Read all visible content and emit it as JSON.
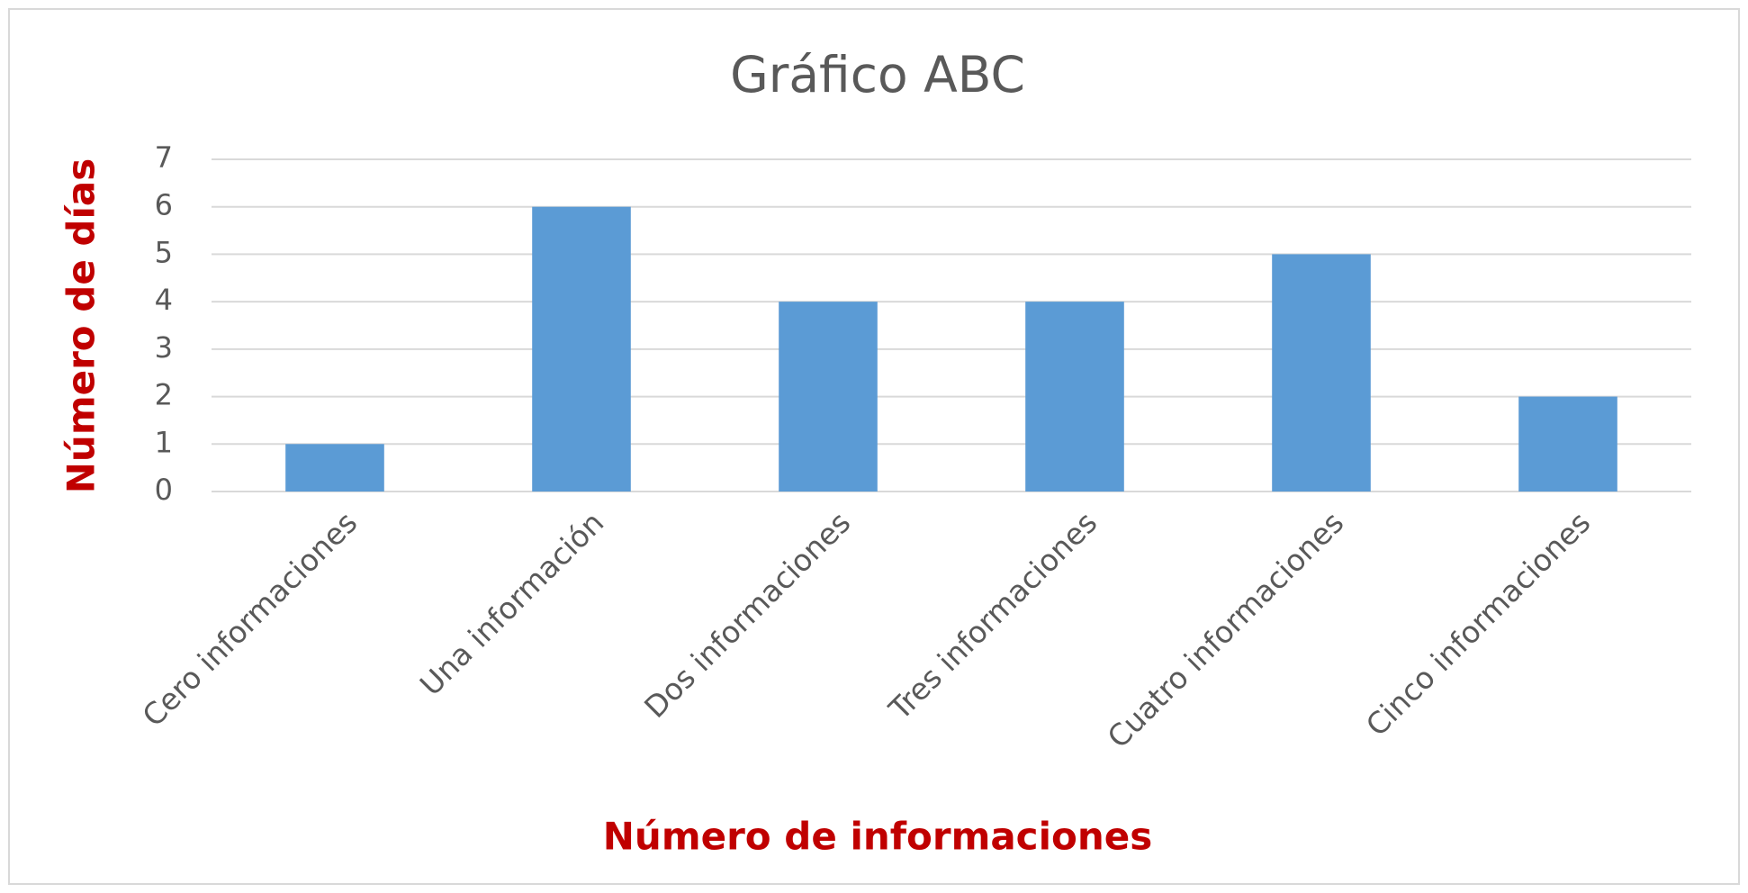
{
  "chart_data": {
    "type": "bar",
    "title": "Gráfico ABC",
    "x_label": "Número de informaciones",
    "y_label": "Número de días",
    "categories": [
      "Cero informaciones",
      "Una información",
      "Dos informaciones",
      "Tres informaciones",
      "Cuatro informaciones",
      "Cinco informaciones"
    ],
    "values": [
      1,
      6,
      4,
      4,
      5,
      2
    ],
    "color": "#5b9bd5",
    "ylim": [
      0,
      7
    ],
    "yticks": [
      0,
      1,
      2,
      3,
      4,
      5,
      6,
      7
    ],
    "grid": true
  }
}
